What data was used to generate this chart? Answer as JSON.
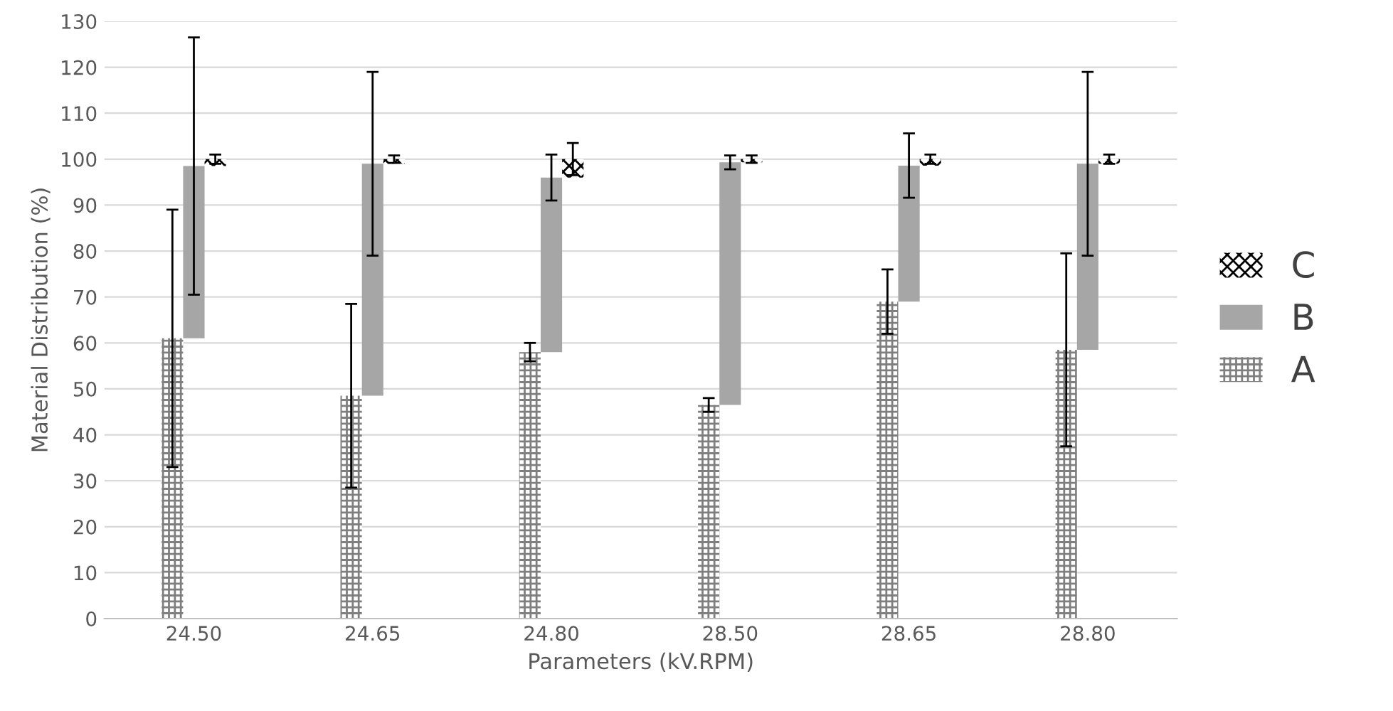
{
  "chart_data": {
    "type": "bar",
    "xlabel": "Parameters (kV.RPM)",
    "ylabel": "Material Distribution (%)",
    "categories": [
      "24.50",
      "24.65",
      "24.80",
      "28.50",
      "28.65",
      "28.80"
    ],
    "series": [
      {
        "name": "A",
        "color": "#7f7f7f",
        "values": [
          61,
          48.5,
          58,
          46.5,
          69,
          58.5
        ],
        "errors": [
          28,
          20,
          2,
          1.5,
          7,
          21
        ]
      },
      {
        "name": "B",
        "color": "#a6a6a6",
        "base": [
          61,
          48.5,
          58,
          46.5,
          69,
          58.5
        ],
        "values": [
          37.5,
          50.5,
          38,
          52.8,
          29.6,
          40.5
        ],
        "errors": [
          28,
          20,
          5,
          1.5,
          7,
          20
        ]
      },
      {
        "name": "C",
        "color": "#000000",
        "base": [
          98.5,
          99,
          96,
          99.3,
          98.6,
          99
        ],
        "values": [
          1.5,
          1,
          4,
          0.7,
          1.4,
          1
        ],
        "errors": [
          1,
          0.8,
          3.5,
          0.8,
          1,
          1
        ]
      }
    ],
    "ylim": [
      0,
      130
    ],
    "yticks": [
      0,
      10,
      20,
      30,
      40,
      50,
      60,
      70,
      80,
      90,
      100,
      110,
      120,
      130
    ],
    "grid": "y",
    "legend": "right"
  }
}
